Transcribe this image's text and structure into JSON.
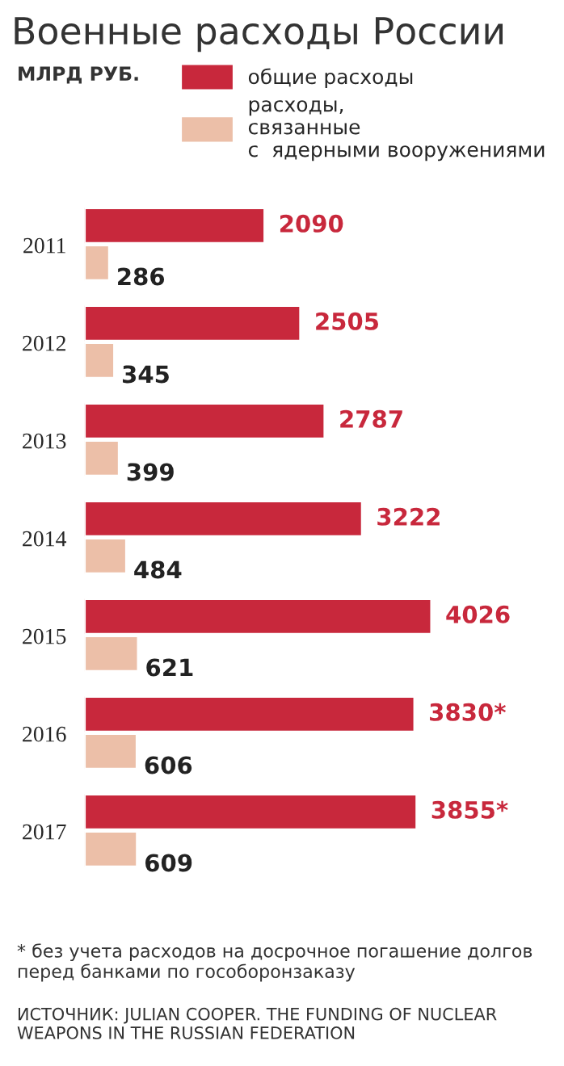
{
  "chart_data": {
    "type": "bar",
    "orientation": "horizontal",
    "title": "Военные расходы России",
    "subtitle": "МЛРД РУБ.",
    "categories": [
      "2011",
      "2012",
      "2013",
      "2014",
      "2015",
      "2016",
      "2017"
    ],
    "series": [
      {
        "name": "общие расходы",
        "color": "#c8283c",
        "values": [
          2090,
          2505,
          2787,
          3222,
          4026,
          3830,
          3855
        ],
        "value_labels": [
          "2090",
          "2505",
          "2787",
          "3222",
          "4026",
          "3830*",
          "3855*"
        ]
      },
      {
        "name": "расходы, связанные с ядерными вооружениями",
        "color": "#ecbfa8",
        "values": [
          286,
          345,
          399,
          484,
          621,
          606,
          609
        ],
        "value_labels": [
          "286",
          "345",
          "399",
          "484",
          "621",
          "606",
          "609"
        ]
      }
    ],
    "legend": "top right",
    "grid": false,
    "annotations": [
      "* без учета расходов на досрочное погашение долгов перед банками по гособоронзаказу",
      "ИСТОЧНИК: JULIAN COOPER. THE FUNDING OF NUCLEAR WEAPONS IN THE RUSSIAN FEDERATION"
    ]
  }
}
